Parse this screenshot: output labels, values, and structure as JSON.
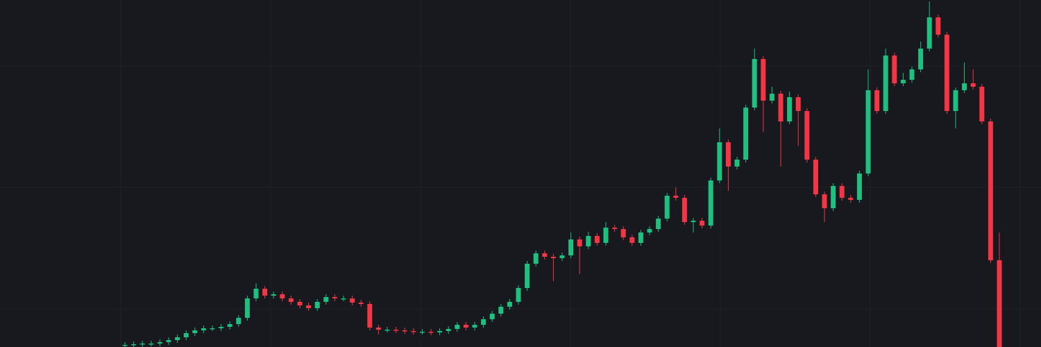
{
  "chart_data": {
    "type": "candlestick",
    "up_color": "#1fbf80",
    "down_color": "#f23645",
    "ylim": [
      0,
      500
    ],
    "open": [
      2,
      3,
      4,
      5,
      5,
      7,
      10,
      14,
      20,
      24,
      27,
      27,
      29,
      33,
      42,
      70,
      84,
      74,
      76,
      70,
      65,
      60,
      56,
      65,
      72,
      70,
      70,
      64,
      62,
      28,
      25,
      25,
      24,
      23,
      22,
      22,
      21,
      23,
      26,
      32,
      28,
      32,
      40,
      48,
      58,
      65,
      85,
      120,
      135,
      130,
      128,
      132,
      155,
      145,
      160,
      150,
      172,
      170,
      158,
      150,
      165,
      170,
      185,
      218,
      215,
      180,
      182,
      175,
      240,
      295,
      260,
      270,
      345,
      415,
      355,
      365,
      325,
      360,
      340,
      270,
      220,
      200,
      232,
      215,
      212,
      250,
      370,
      340,
      420,
      380,
      385,
      400,
      430,
      475,
      450,
      340,
      370,
      380,
      375,
      325,
      125
    ],
    "high": [
      7,
      8,
      9,
      9,
      11,
      14,
      18,
      24,
      28,
      31,
      31,
      33,
      37,
      46,
      74,
      92,
      88,
      80,
      80,
      74,
      69,
      64,
      69,
      76,
      76,
      74,
      74,
      68,
      66,
      32,
      29,
      29,
      28,
      27,
      26,
      26,
      27,
      30,
      36,
      36,
      36,
      44,
      52,
      62,
      69,
      89,
      124,
      139,
      139,
      134,
      136,
      165,
      159,
      166,
      164,
      180,
      176,
      174,
      162,
      169,
      174,
      189,
      222,
      230,
      219,
      186,
      186,
      244,
      315,
      299,
      274,
      349,
      430,
      419,
      375,
      369,
      368,
      364,
      344,
      274,
      224,
      236,
      236,
      219,
      254,
      400,
      374,
      430,
      424,
      395,
      404,
      440,
      498,
      479,
      454,
      374,
      410,
      400,
      379,
      329,
      165
    ],
    "low": [
      0,
      0,
      0,
      1,
      1,
      3,
      6,
      10,
      16,
      20,
      23,
      23,
      25,
      29,
      38,
      66,
      70,
      70,
      66,
      61,
      56,
      52,
      52,
      61,
      66,
      66,
      60,
      58,
      24,
      18,
      21,
      20,
      19,
      18,
      18,
      17,
      17,
      19,
      22,
      24,
      24,
      28,
      36,
      44,
      54,
      61,
      81,
      116,
      126,
      95,
      124,
      128,
      105,
      141,
      146,
      146,
      166,
      154,
      146,
      146,
      161,
      166,
      181,
      211,
      176,
      165,
      171,
      171,
      236,
      225,
      256,
      266,
      341,
      310,
      351,
      260,
      321,
      290,
      266,
      216,
      180,
      196,
      211,
      208,
      208,
      246,
      336,
      336,
      376,
      376,
      381,
      396,
      426,
      446,
      336,
      315,
      366,
      371,
      321,
      121,
      0
    ],
    "close": [
      3,
      4,
      5,
      5,
      7,
      10,
      14,
      20,
      24,
      27,
      27,
      29,
      33,
      42,
      70,
      84,
      74,
      76,
      70,
      65,
      60,
      56,
      65,
      72,
      70,
      70,
      64,
      62,
      28,
      25,
      25,
      24,
      23,
      22,
      22,
      21,
      23,
      26,
      32,
      28,
      32,
      40,
      48,
      58,
      65,
      85,
      120,
      135,
      130,
      128,
      132,
      155,
      145,
      160,
      150,
      172,
      170,
      158,
      150,
      165,
      170,
      185,
      218,
      215,
      180,
      182,
      175,
      240,
      295,
      260,
      270,
      345,
      415,
      355,
      365,
      325,
      360,
      340,
      270,
      220,
      200,
      232,
      215,
      212,
      250,
      370,
      340,
      420,
      380,
      385,
      400,
      430,
      475,
      450,
      340,
      370,
      380,
      375,
      325,
      125,
      0
    ]
  }
}
